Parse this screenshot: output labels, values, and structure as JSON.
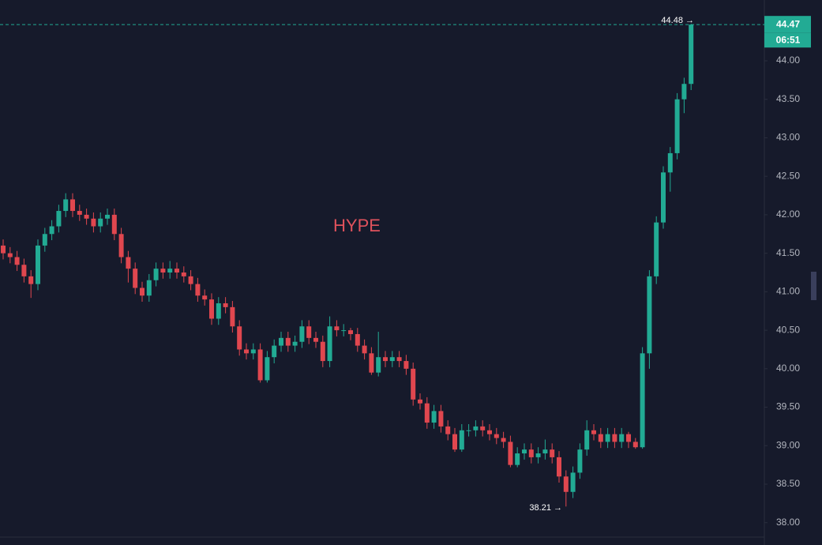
{
  "chart_data": {
    "type": "candlestick",
    "watermark": "HYPE",
    "up_color": "#22ab94",
    "down_color": "#e0474f",
    "open": [
      41.6,
      41.5,
      41.45,
      41.35,
      41.2,
      41.1,
      41.6,
      41.75,
      41.85,
      42.05,
      42.2,
      42.05,
      42.0,
      41.95,
      41.85,
      41.95,
      42.0,
      41.75,
      41.45,
      41.3,
      41.05,
      40.95,
      41.15,
      41.3,
      41.25,
      41.3,
      41.25,
      41.2,
      41.1,
      40.95,
      40.9,
      40.65,
      40.85,
      40.8,
      40.55,
      40.25,
      40.2,
      40.25,
      39.85,
      40.15,
      40.3,
      40.4,
      40.3,
      40.35,
      40.55,
      40.4,
      40.35,
      40.1,
      40.55,
      40.5,
      40.5,
      40.45,
      40.3,
      40.2,
      39.95,
      40.15,
      40.1,
      40.15,
      40.1,
      40.0,
      39.6,
      39.55,
      39.3,
      39.45,
      39.25,
      39.15,
      38.95,
      39.2,
      39.2,
      39.25,
      39.2,
      39.15,
      39.1,
      39.05,
      38.75,
      38.9,
      38.95,
      38.85,
      38.9,
      38.95,
      38.85,
      38.6,
      38.4,
      38.65,
      38.95,
      39.2,
      39.15,
      39.05,
      39.15,
      39.05,
      39.15,
      39.05,
      38.98,
      40.2,
      41.2,
      41.9,
      42.55,
      42.8,
      43.5,
      43.7
    ],
    "high": [
      41.68,
      41.58,
      41.53,
      41.43,
      41.28,
      41.68,
      41.83,
      41.93,
      42.13,
      42.28,
      42.28,
      42.13,
      42.08,
      42.03,
      42.03,
      42.08,
      42.08,
      41.83,
      41.53,
      41.38,
      41.13,
      41.23,
      41.38,
      41.38,
      41.4,
      41.38,
      41.33,
      41.28,
      41.18,
      41.03,
      40.98,
      40.93,
      40.93,
      40.88,
      40.63,
      40.33,
      40.33,
      40.33,
      40.23,
      40.38,
      40.48,
      40.48,
      40.43,
      40.63,
      40.63,
      40.48,
      40.43,
      40.68,
      40.63,
      40.58,
      40.53,
      40.53,
      40.38,
      40.28,
      40.48,
      40.23,
      40.23,
      40.23,
      40.18,
      40.08,
      39.68,
      39.63,
      39.53,
      39.53,
      39.33,
      39.23,
      39.28,
      39.28,
      39.33,
      39.33,
      39.28,
      39.23,
      39.18,
      39.13,
      38.98,
      39.03,
      39.03,
      38.98,
      39.08,
      39.03,
      38.93,
      38.68,
      38.73,
      39.03,
      39.33,
      39.28,
      39.23,
      39.23,
      39.23,
      39.23,
      39.18,
      39.1,
      40.28,
      41.28,
      41.98,
      42.63,
      42.88,
      43.58,
      43.78,
      44.48
    ],
    "low": [
      41.42,
      41.37,
      41.27,
      41.12,
      40.92,
      41.02,
      41.52,
      41.67,
      41.77,
      41.97,
      41.97,
      41.92,
      41.87,
      41.77,
      41.77,
      41.87,
      41.67,
      41.37,
      41.12,
      40.97,
      40.87,
      40.87,
      41.07,
      41.17,
      41.17,
      41.17,
      41.12,
      41.02,
      40.87,
      40.82,
      40.57,
      40.57,
      40.72,
      40.47,
      40.17,
      40.12,
      40.12,
      39.82,
      39.82,
      40.07,
      40.22,
      40.22,
      40.22,
      40.27,
      40.32,
      40.27,
      40.02,
      40.02,
      40.42,
      40.42,
      40.37,
      40.22,
      40.12,
      39.92,
      39.9,
      40.02,
      40.02,
      40.02,
      39.92,
      39.52,
      39.47,
      39.22,
      39.22,
      39.17,
      39.07,
      38.92,
      38.92,
      39.12,
      39.12,
      39.12,
      39.07,
      39.02,
      38.97,
      38.72,
      38.72,
      38.82,
      38.77,
      38.77,
      38.82,
      38.77,
      38.52,
      38.21,
      38.32,
      38.57,
      38.87,
      39.07,
      38.97,
      38.97,
      38.97,
      38.97,
      38.97,
      38.96,
      38.96,
      40.0,
      41.1,
      41.82,
      42.3,
      42.72,
      43.32,
      43.62
    ],
    "close": [
      41.5,
      41.45,
      41.35,
      41.2,
      41.1,
      41.6,
      41.75,
      41.85,
      42.05,
      42.2,
      42.05,
      42.0,
      41.95,
      41.85,
      41.95,
      42.0,
      41.75,
      41.45,
      41.3,
      41.05,
      40.95,
      41.15,
      41.3,
      41.25,
      41.3,
      41.25,
      41.2,
      41.1,
      40.95,
      40.9,
      40.65,
      40.85,
      40.8,
      40.55,
      40.25,
      40.2,
      40.25,
      39.85,
      40.15,
      40.3,
      40.4,
      40.3,
      40.35,
      40.55,
      40.4,
      40.35,
      40.1,
      40.55,
      40.5,
      40.5,
      40.45,
      40.3,
      40.2,
      39.95,
      40.15,
      40.1,
      40.15,
      40.1,
      40.0,
      39.6,
      39.55,
      39.3,
      39.45,
      39.25,
      39.15,
      38.95,
      39.2,
      39.2,
      39.25,
      39.2,
      39.15,
      39.1,
      39.05,
      38.75,
      38.9,
      38.95,
      38.85,
      38.9,
      38.95,
      38.85,
      38.6,
      38.4,
      38.65,
      38.95,
      39.2,
      39.15,
      39.05,
      39.15,
      39.05,
      39.15,
      39.05,
      38.98,
      40.2,
      41.2,
      41.9,
      42.55,
      42.8,
      43.5,
      43.7,
      44.47
    ],
    "ylim": [
      37.71,
      44.79
    ],
    "yticks": [
      {
        "value": 38,
        "label": "38.00"
      },
      {
        "value": 38.5,
        "label": "38.50"
      },
      {
        "value": 39,
        "label": "39.00"
      },
      {
        "value": 39.5,
        "label": "39.50"
      },
      {
        "value": 40,
        "label": "40.00"
      },
      {
        "value": 40.5,
        "label": "40.50"
      },
      {
        "value": 41,
        "label": "41.00"
      },
      {
        "value": 41.5,
        "label": "41.50"
      },
      {
        "value": 42,
        "label": "42.00"
      },
      {
        "value": 42.5,
        "label": "42.50"
      },
      {
        "value": 43,
        "label": "43.00"
      },
      {
        "value": 43.5,
        "label": "43.50"
      },
      {
        "value": 44,
        "label": "44.00"
      }
    ],
    "last_price": {
      "value": 44.47,
      "label": "44.47"
    },
    "countdown": "06:51",
    "high_marker": {
      "value": 44.48,
      "label": "44.48 →"
    },
    "low_marker": {
      "value": 38.21,
      "label": "38.21 →"
    }
  }
}
